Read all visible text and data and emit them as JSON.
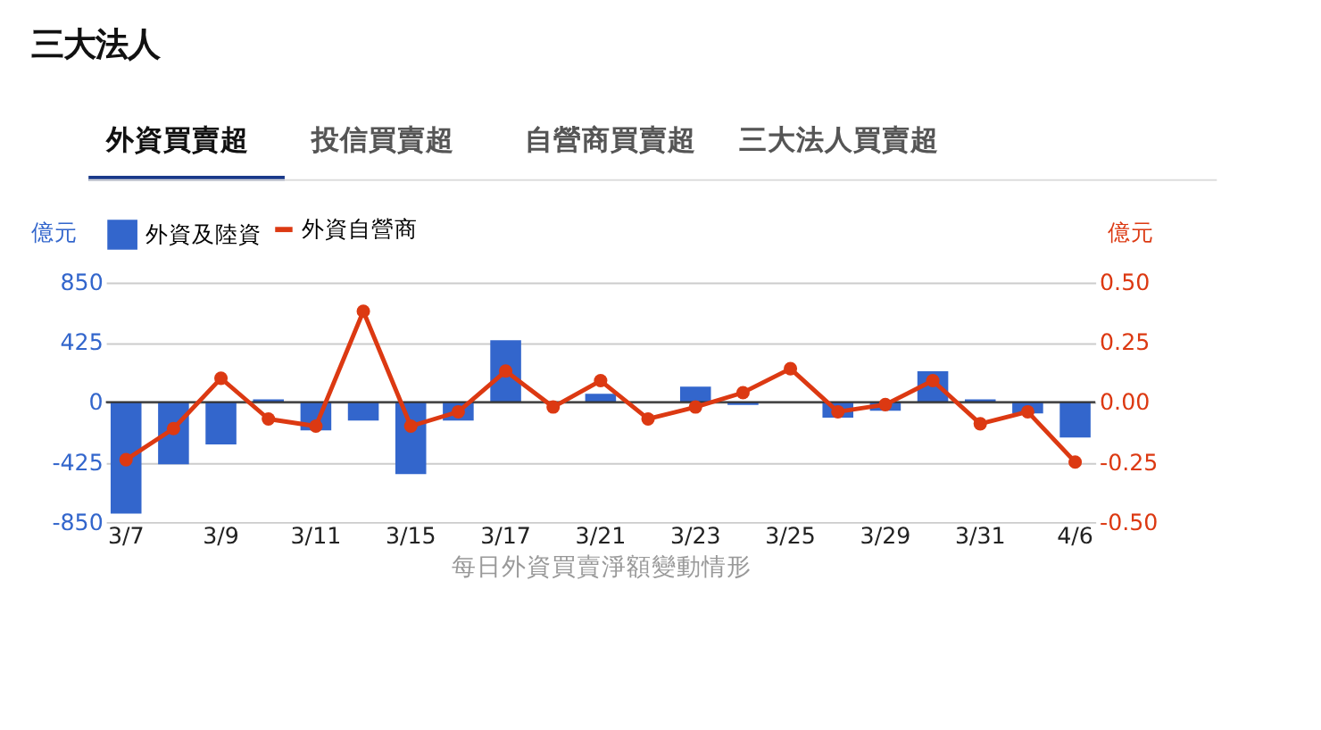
{
  "chart_data": {
    "type": "bar",
    "title": "三大法人",
    "annotations": [
      "外資買賣超",
      "投信買賣超",
      "自營商買賣超",
      "三大法人買賣超"
    ],
    "xlabel": "每日外資買賣淨額變動情形",
    "ylabel": "億元",
    "y2label": "億元",
    "categories": [
      "3/7",
      null,
      "3/9",
      null,
      "3/11",
      null,
      "3/15",
      null,
      "3/17",
      null,
      "3/21",
      null,
      "3/23",
      null,
      "3/25",
      null,
      "3/29",
      null,
      "3/31",
      null,
      "4/6"
    ],
    "series": [
      {
        "name": "外資及陸資",
        "color": "#3366cc",
        "values": [
          -790,
          -440,
          -300,
          20,
          -200,
          -130,
          -510,
          -130,
          440,
          0,
          60,
          0,
          110,
          -20,
          0,
          -110,
          -60,
          220,
          20,
          -80,
          -250
        ]
      },
      {
        "name": "外資自營商",
        "type": "line",
        "axis": "y2",
        "color": "#dc3912",
        "marker": "circle",
        "values": [
          -0.24,
          -0.11,
          0.1,
          -0.07,
          -0.1,
          0.38,
          -0.1,
          -0.04,
          0.13,
          -0.02,
          0.09,
          -0.07,
          -0.02,
          0.04,
          0.14,
          -0.04,
          -0.01,
          0.09,
          -0.09,
          -0.04,
          -0.25
        ]
      }
    ],
    "ylim": [
      -850,
      850
    ],
    "yticks": [
      -850,
      -425,
      0,
      425,
      850
    ],
    "y2lim": [
      -0.5,
      0.5
    ],
    "y2ticks": [
      {
        "value": -0.5,
        "label": "-0.50"
      },
      {
        "value": -0.25,
        "label": "-0.25"
      },
      {
        "value": 0,
        "label": "0.00"
      },
      {
        "value": 0.25,
        "label": "0.25"
      },
      {
        "value": 0.5,
        "label": "0.50"
      }
    ],
    "grid": "y",
    "legend": "top left"
  }
}
